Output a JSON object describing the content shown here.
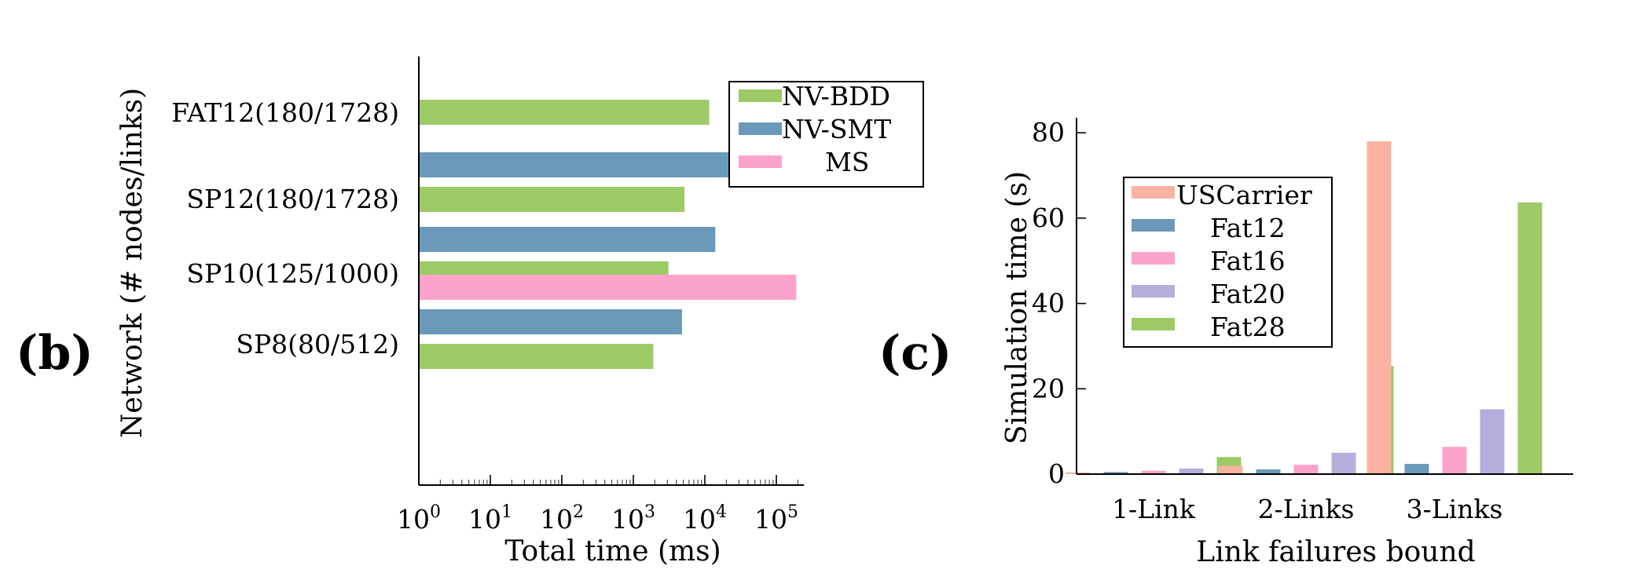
{
  "chart_data": [
    {
      "panel_label": "(b)",
      "type": "bar",
      "orientation": "horizontal",
      "xscale": "log",
      "xlim": [
        1,
        200000
      ],
      "xlabel": "Total time (ms)",
      "ylabel": "Network (# nodes/links)",
      "x_ticks": [
        {
          "base": "10",
          "exp": "0"
        },
        {
          "base": "10",
          "exp": "1"
        },
        {
          "base": "10",
          "exp": "2"
        },
        {
          "base": "10",
          "exp": "3"
        },
        {
          "base": "10",
          "exp": "4"
        },
        {
          "base": "10",
          "exp": "5"
        }
      ],
      "categories": [
        "FAT12(180/1728)",
        "SP12(180/1728)",
        "SP10(125/1000)",
        "SP8(80/512)"
      ],
      "series": [
        {
          "name": "NV-BDD",
          "color": "#9dc967",
          "values": [
            11500,
            5200,
            3100,
            1900
          ]
        },
        {
          "name": "NV-SMT",
          "color": "#6a99ba",
          "values": [
            null,
            155000,
            14000,
            4800
          ]
        },
        {
          "name": "MS",
          "color": "#fba3cb",
          "values": [
            null,
            null,
            null,
            190000
          ]
        }
      ],
      "legend_position": "top-right",
      "grid": false
    },
    {
      "panel_label": "(c)",
      "type": "bar",
      "orientation": "vertical",
      "ylim": [
        0,
        80
      ],
      "ylabel": "Simulation time (s)",
      "xlabel": "Link failures bound",
      "y_ticks": [
        "0",
        "20",
        "40",
        "60",
        "80"
      ],
      "categories": [
        "1-Link",
        "2-Links",
        "3-Links"
      ],
      "series": [
        {
          "name": "USCarrier",
          "color": "#fbb2a2",
          "values": [
            0.4,
            1.9,
            78
          ]
        },
        {
          "name": "Fat12",
          "color": "#6a99ba",
          "values": [
            0.5,
            1.1,
            2.4
          ]
        },
        {
          "name": "Fat16",
          "color": "#fba3cb",
          "values": [
            0.8,
            2.2,
            6.4
          ]
        },
        {
          "name": "Fat20",
          "color": "#b4aedc",
          "values": [
            1.3,
            5.0,
            15.2
          ]
        },
        {
          "name": "Fat28",
          "color": "#9dc967",
          "values": [
            4.0,
            25.3,
            63.7
          ]
        }
      ],
      "legend_position": "top-left",
      "grid": false
    }
  ]
}
